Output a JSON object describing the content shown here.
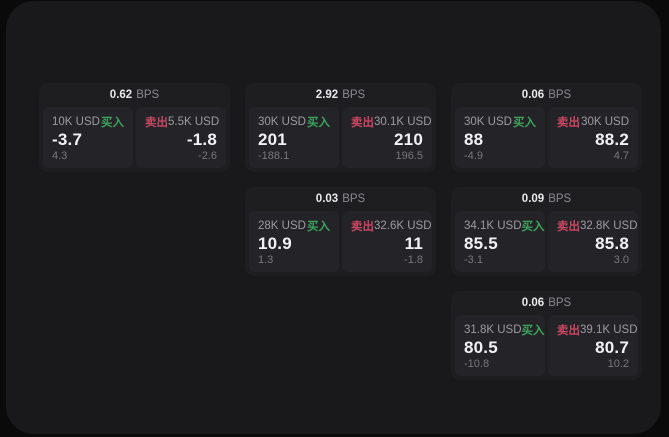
{
  "labels": {
    "bps": "BPS",
    "buy": "买入",
    "sell": "卖出"
  },
  "colors": {
    "background": "#0a0a0b",
    "panel": "#19191b",
    "card": "#1e1e21",
    "tile": "#242428",
    "buy_green": "#3da35e",
    "sell_red": "#ca4763",
    "price_text": "#f2f2f4",
    "muted_text": "#8a8a90"
  },
  "cards": [
    {
      "bps": "0.62",
      "buy": {
        "size": "10K USD",
        "price": "-3.7",
        "delta": "4.3"
      },
      "sell": {
        "size": "5.5K USD",
        "price": "-1.8",
        "delta": "-2.6"
      }
    },
    {
      "bps": "2.92",
      "buy": {
        "size": "30K USD",
        "price": "201",
        "delta": "-188.1"
      },
      "sell": {
        "size": "30.1K USD",
        "price": "210",
        "delta": "196.5"
      }
    },
    {
      "bps": "0.06",
      "buy": {
        "size": "30K USD",
        "price": "88",
        "delta": "-4.9"
      },
      "sell": {
        "size": "30K USD",
        "price": "88.2",
        "delta": "4.7"
      }
    },
    {
      "bps": "0.03",
      "buy": {
        "size": "28K USD",
        "price": "10.9",
        "delta": "1.3"
      },
      "sell": {
        "size": "32.6K USD",
        "price": "11",
        "delta": "-1.8"
      }
    },
    {
      "bps": "0.09",
      "buy": {
        "size": "34.1K USD",
        "price": "85.5",
        "delta": "-3.1"
      },
      "sell": {
        "size": "32.8K USD",
        "price": "85.8",
        "delta": "3.0"
      }
    },
    {
      "bps": "0.06",
      "buy": {
        "size": "31.8K USD",
        "price": "80.5",
        "delta": "-10.8"
      },
      "sell": {
        "size": "39.1K USD",
        "price": "80.7",
        "delta": "10.2"
      }
    }
  ]
}
